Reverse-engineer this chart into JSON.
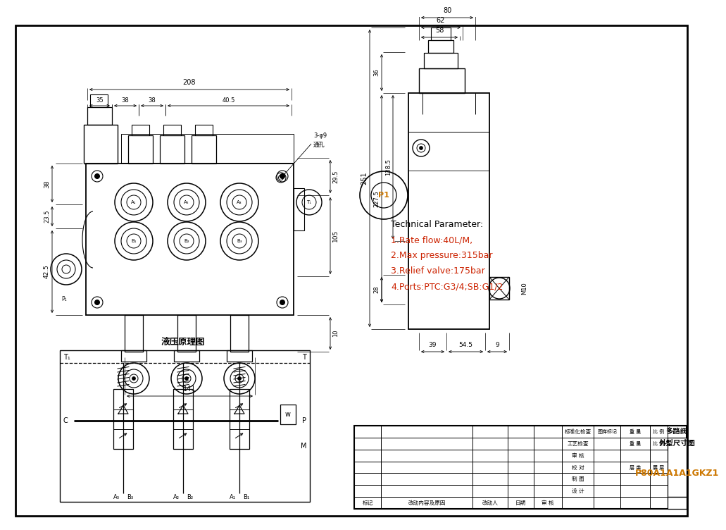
{
  "bg_color": "#ffffff",
  "tech_params": [
    [
      "Technical Parameter:",
      "black"
    ],
    [
      "1.Rate flow:40L/M,",
      "#cc2200"
    ],
    [
      "2.Max pressure:315bar",
      "#cc2200"
    ],
    [
      "3.Relief valve:175bar",
      "#cc2200"
    ],
    [
      "4.Ports:PTC:G3/4;SB:G1/2",
      "#cc2200"
    ]
  ],
  "schematic_title": "液压原理图",
  "model_code": "P80A1A1A1GKZ1",
  "drawing_title1": "多路阀",
  "drawing_title2": "外型尺寸图",
  "table_col1": [
    "设 计",
    "制 图",
    "校 对",
    "审 核",
    "工艺检查",
    "标准化检查"
  ],
  "table_last_row": [
    "标记",
    "改动内容及原因",
    "改动人",
    "日期",
    "审 核"
  ],
  "table_mid_row1": [
    "图样标记",
    "",
    ""
  ],
  "table_mid_row2": [
    "重 量",
    "比 例",
    ""
  ],
  "table_mid_row4": [
    "层 类",
    "展 层",
    ""
  ]
}
